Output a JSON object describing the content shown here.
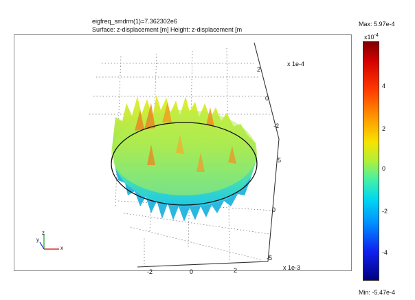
{
  "header": {
    "title_line1": "eigfreq_smdrm(1)=7.362302e6",
    "title_line2": "Surface: z-displacement [m]   Height: z-displacement [m"
  },
  "colorbar": {
    "max_label": "Max: 5.97e-4",
    "min_label": "Min: -5.47e-4",
    "exponent": "x10",
    "exponent_power": "-4",
    "ticks": [
      "4",
      "2",
      "0",
      "-2",
      "-4"
    ],
    "colors": [
      "#7f0000",
      "#ff3a00",
      "#f7e200",
      "#42f0a8",
      "#0090ff",
      "#000080"
    ]
  },
  "axes": {
    "z_scale_label": "x 1e-4",
    "x_scale_label": "x 1e-3",
    "triad_x": "x",
    "triad_z": "z",
    "triad_y": "y"
  },
  "chart_data": {
    "type": "surface",
    "title": "eigfreq_smdrm(1)=7.362302e6",
    "subtitle": "Surface: z-displacement [m]   Height: z-displacement [m",
    "colorbar_range": [
      -0.000547,
      0.000597
    ],
    "colorbar_ticks": [
      4,
      2,
      0,
      -2,
      -4
    ],
    "colorbar_multiplier": "x10^-4",
    "x_axis_ticks": [
      "-2",
      "0",
      "2"
    ],
    "x_axis_multiplier": "x 1e-3",
    "z_axis_ticks": [
      "2",
      "0",
      "-2"
    ],
    "z_axis_multiplier": "x 1e-4",
    "y_axis_ticks": [
      "5",
      "0",
      "-5"
    ],
    "grid": true
  }
}
